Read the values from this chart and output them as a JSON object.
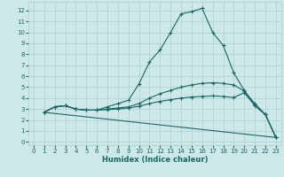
{
  "background_color": "#cde8e8",
  "grid_color": "#b0cece",
  "line_color": "#1a6666",
  "line_width": 0.8,
  "marker": "+",
  "marker_size": 3.5,
  "marker_edge_width": 0.8,
  "xlabel": "Humidex (Indice chaleur)",
  "xlabel_fontsize": 6.0,
  "xlabel_color": "#1a6666",
  "tick_fontsize": 5.0,
  "xlim": [
    -0.5,
    23.5
  ],
  "ylim": [
    -0.3,
    12.8
  ],
  "xticks": [
    0,
    1,
    2,
    3,
    4,
    5,
    6,
    7,
    8,
    9,
    10,
    11,
    12,
    13,
    14,
    15,
    16,
    17,
    18,
    19,
    20,
    21,
    22,
    23
  ],
  "yticks": [
    0,
    1,
    2,
    3,
    4,
    5,
    6,
    7,
    8,
    9,
    10,
    11,
    12
  ],
  "line1_x": [
    1,
    2,
    3,
    4,
    5,
    6,
    7,
    8,
    9,
    10,
    11,
    12,
    13,
    14,
    15,
    16,
    17,
    18,
    19,
    20,
    21,
    22,
    23
  ],
  "line1_y": [
    2.7,
    3.2,
    3.3,
    3.0,
    2.9,
    2.9,
    3.2,
    3.5,
    3.8,
    5.3,
    7.3,
    8.4,
    10.0,
    11.7,
    11.9,
    12.2,
    10.0,
    8.8,
    6.3,
    4.7,
    3.3,
    2.5,
    0.4
  ],
  "line2_x": [
    1,
    2,
    3,
    4,
    5,
    6,
    7,
    8,
    9,
    10,
    11,
    12,
    13,
    14,
    15,
    16,
    17,
    18,
    19,
    20,
    21,
    22,
    23
  ],
  "line2_y": [
    2.7,
    3.2,
    3.3,
    3.0,
    2.9,
    2.9,
    3.0,
    3.1,
    3.2,
    3.5,
    4.0,
    4.4,
    4.7,
    5.0,
    5.2,
    5.35,
    5.4,
    5.35,
    5.2,
    4.65,
    3.5,
    2.5,
    0.4
  ],
  "line3_x": [
    1,
    23
  ],
  "line3_y": [
    2.7,
    0.4
  ],
  "line4_x": [
    1,
    2,
    3,
    4,
    5,
    6,
    7,
    8,
    9,
    10,
    11,
    12,
    13,
    14,
    15,
    16,
    17,
    18,
    19,
    20,
    21,
    22,
    23
  ],
  "line4_y": [
    2.7,
    3.2,
    3.3,
    3.0,
    2.9,
    2.9,
    2.95,
    3.0,
    3.1,
    3.25,
    3.5,
    3.7,
    3.85,
    4.0,
    4.1,
    4.15,
    4.2,
    4.15,
    4.05,
    4.5,
    3.3,
    2.5,
    0.4
  ]
}
